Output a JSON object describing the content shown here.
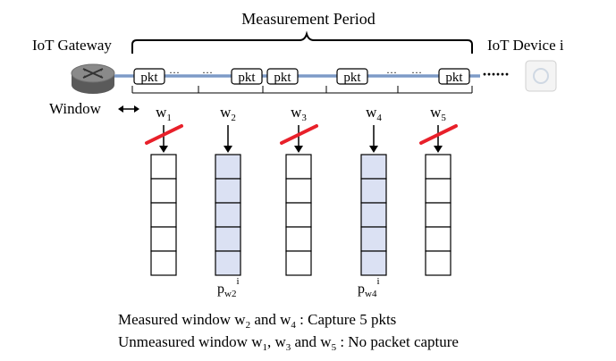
{
  "title": "Measurement Period",
  "gateway_label": "IoT Gateway",
  "device_label": "IoT Device i",
  "window_label": "Window",
  "window_arrow_glyph": "↔",
  "packet_label": "pkt",
  "dots": "···",
  "windows": [
    {
      "name": "w",
      "sub": "1",
      "measured": false
    },
    {
      "name": "w",
      "sub": "2",
      "measured": true
    },
    {
      "name": "w",
      "sub": "3",
      "measured": false
    },
    {
      "name": "w",
      "sub": "4",
      "measured": true
    },
    {
      "name": "w",
      "sub": "5",
      "measured": false
    }
  ],
  "buffer_slots": 5,
  "captures": [
    {
      "base": "p",
      "sub": "w2",
      "sup": "i"
    },
    {
      "base": "p",
      "sub": "w4",
      "sup": "i"
    }
  ],
  "legend": {
    "line1_prefix": "Measured window w",
    "line1_sub_a": "2",
    "line1_mid": " and w",
    "line1_sub_b": "4",
    "line1_suffix": " : Capture 5 pkts",
    "line2_prefix": "Unmeasured  window w",
    "line2_sub_a": "1",
    "line2_mid1": ", w",
    "line2_sub_b": "3",
    "line2_mid2": " and w",
    "line2_sub_c": "5",
    "line2_suffix": " : No packet capture"
  },
  "colors": {
    "measured_fill": "#dbe1f3",
    "unmeasured_fill": "#ffffff",
    "cross": "#e8202a",
    "link": "#9fb6d8",
    "router_top": "#8a8a8a",
    "router_side": "#5a5a5a"
  }
}
